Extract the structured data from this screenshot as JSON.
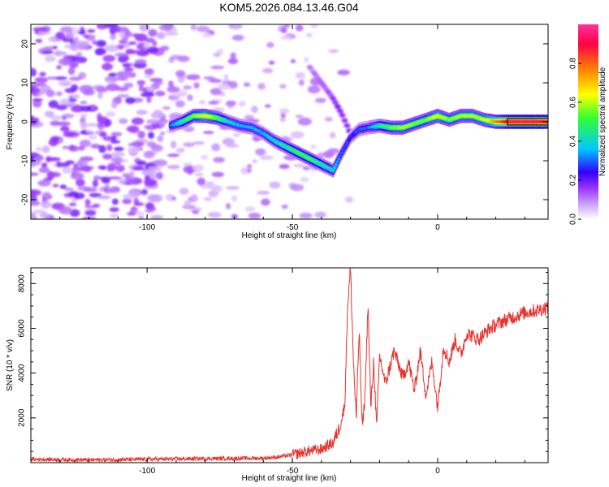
{
  "title": "KOM5.2026.084.13.46.G04",
  "colors": {
    "trace": "#e8332e",
    "colormap": [
      "#ffffff",
      "#d6b8ff",
      "#9933ff",
      "#3300ff",
      "#00c8ff",
      "#33ff33",
      "#ffff00",
      "#ff8800",
      "#ff0044",
      "#ff3399"
    ]
  },
  "chart_data": [
    {
      "id": "spectrogram",
      "type": "heatmap",
      "xlabel": "Height of straight line (km)",
      "ylabel": "Frequency (Hz)",
      "xlim": [
        -140,
        38
      ],
      "ylim": [
        -25,
        25
      ],
      "xticks": [
        -100,
        -50,
        0
      ],
      "xtick_labels": [
        "-100",
        "-50",
        "0"
      ],
      "yticks": [
        -20,
        -10,
        0,
        10,
        20
      ],
      "ytick_labels": [
        "-20",
        "-10",
        "0",
        "10",
        "20"
      ],
      "colorbar": {
        "label": "Normalized spectral amplitude",
        "lim": [
          0,
          1
        ],
        "ticks": [
          0,
          0.2,
          0.4,
          0.6,
          0.8
        ],
        "tick_labels": [
          "0.0",
          "0.2",
          "0.4",
          "0.6",
          "0.8"
        ]
      },
      "ridge": {
        "x": [
          -92,
          -88,
          -84,
          -80,
          -76,
          -72,
          -68,
          -64,
          -60,
          -56,
          -52,
          -48,
          -44,
          -40,
          -36,
          -33,
          -30,
          -27,
          -24,
          -20,
          -16,
          -12,
          -8,
          -4,
          0,
          4,
          8,
          12,
          16,
          20,
          24,
          28,
          32,
          38
        ],
        "freq": [
          -1,
          0,
          1.5,
          1.5,
          1,
          0,
          -1,
          -1.5,
          -3,
          -5,
          -6.5,
          -8,
          -9.5,
          -11,
          -12.5,
          -8,
          -4,
          -2,
          -1.5,
          -1,
          -1.5,
          -1.5,
          -0.5,
          0.5,
          1.5,
          0.5,
          1.5,
          1.5,
          0.5,
          0,
          0,
          0,
          0,
          0
        ],
        "amplitude": [
          0.3,
          0.45,
          0.55,
          0.65,
          0.55,
          0.4,
          0.35,
          0.35,
          0.35,
          0.4,
          0.45,
          0.5,
          0.5,
          0.45,
          0.4,
          0.3,
          0.25,
          0.3,
          0.3,
          0.45,
          0.55,
          0.6,
          0.55,
          0.55,
          0.65,
          0.55,
          0.6,
          0.6,
          0.6,
          0.75,
          0.92,
          0.95,
          0.95,
          0.9
        ]
      },
      "branch": {
        "x": [
          -30,
          -33,
          -36,
          -40,
          -44
        ],
        "freq": [
          -3,
          2,
          6,
          10,
          14
        ],
        "amplitude": [
          0.15,
          0.15,
          0.12,
          0.1,
          0.08
        ]
      }
    },
    {
      "id": "snr",
      "type": "line",
      "xlabel": "Height of straight line (km)",
      "ylabel": "SNR (10 * v/v)",
      "xlim": [
        -140,
        38
      ],
      "ylim": [
        0,
        8700
      ],
      "xticks": [
        -100,
        -50,
        0
      ],
      "xtick_labels": [
        "-100",
        "-50",
        "0"
      ],
      "yticks": [
        2000,
        4000,
        6000,
        8000
      ],
      "ytick_labels": [
        "2000",
        "4000",
        "6000",
        "8000"
      ],
      "series": [
        {
          "name": "SNR",
          "x": [
            -140,
            -120,
            -100,
            -80,
            -60,
            -55,
            -50,
            -45,
            -40,
            -36,
            -34,
            -32,
            -31,
            -30,
            -29,
            -28,
            -27,
            -26,
            -25,
            -24,
            -23,
            -22,
            -21,
            -20,
            -18,
            -15,
            -12,
            -10,
            -8,
            -6,
            -4,
            -2,
            0,
            2,
            4,
            6,
            8,
            10,
            14,
            18,
            22,
            26,
            30,
            34,
            38
          ],
          "y": [
            150,
            120,
            150,
            180,
            200,
            250,
            350,
            500,
            600,
            900,
            1500,
            2500,
            7000,
            8700,
            4500,
            2000,
            6000,
            1500,
            3000,
            7100,
            2500,
            4500,
            1500,
            4800,
            3500,
            5000,
            3800,
            4500,
            3200,
            5000,
            3000,
            4500,
            2500,
            5200,
            4500,
            5500,
            4800,
            5800,
            5500,
            6000,
            6300,
            6500,
            6700,
            6800,
            6950
          ],
          "noise": 320
        }
      ]
    }
  ]
}
